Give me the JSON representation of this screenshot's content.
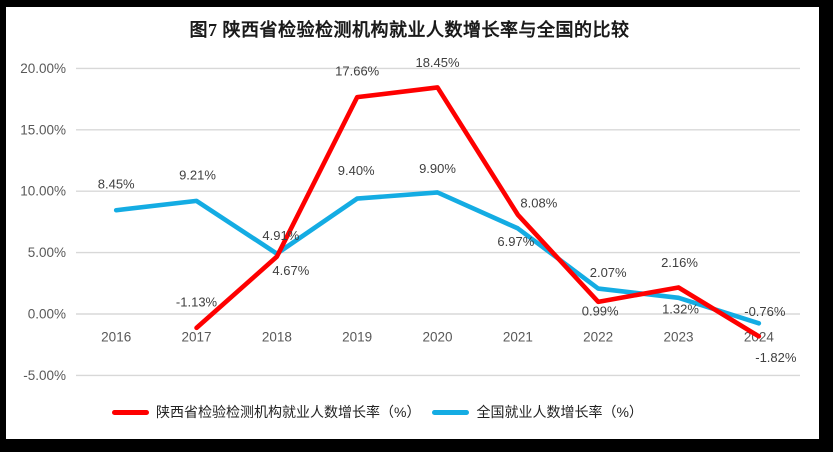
{
  "chart_data": {
    "type": "line",
    "title": "图7 陕西省检验检测机构就业人数增长率与全国的比较",
    "categories": [
      "2016",
      "2017",
      "2018",
      "2019",
      "2020",
      "2021",
      "2022",
      "2023",
      "2024"
    ],
    "series": [
      {
        "name": "陕西省检验检测机构就业人数增长率（%）",
        "color": "#FE0000",
        "values": [
          null,
          -1.13,
          4.67,
          17.66,
          18.45,
          8.08,
          0.99,
          2.16,
          -1.82
        ],
        "labels": [
          "",
          "-1.13%",
          "4.67%",
          "17.66%",
          "18.45%",
          "8.08%",
          "0.99%",
          "2.16%",
          "-1.82%"
        ]
      },
      {
        "name": "全国就业人数增长率（%）",
        "color": "#14ACE3",
        "values": [
          8.45,
          9.21,
          4.91,
          9.4,
          9.9,
          6.97,
          2.07,
          1.32,
          -0.76
        ],
        "labels": [
          "8.45%",
          "9.21%",
          "4.91%",
          "9.40%",
          "9.90%",
          "6.97%",
          "2.07%",
          "1.32%",
          "-0.76%"
        ]
      }
    ],
    "y_ticks": [
      "20.00%",
      "15.00%",
      "10.00%",
      "5.00%",
      "0.00%",
      "-5.00%"
    ],
    "ylim": [
      -5,
      20
    ],
    "grid": true,
    "legend_position": "bottom",
    "colors": {
      "gridline": "#D8D8D8",
      "axis_text": "#595959",
      "data_label": "#3F3F3F",
      "frame": "#000000",
      "background": "#FFFFFF"
    }
  }
}
